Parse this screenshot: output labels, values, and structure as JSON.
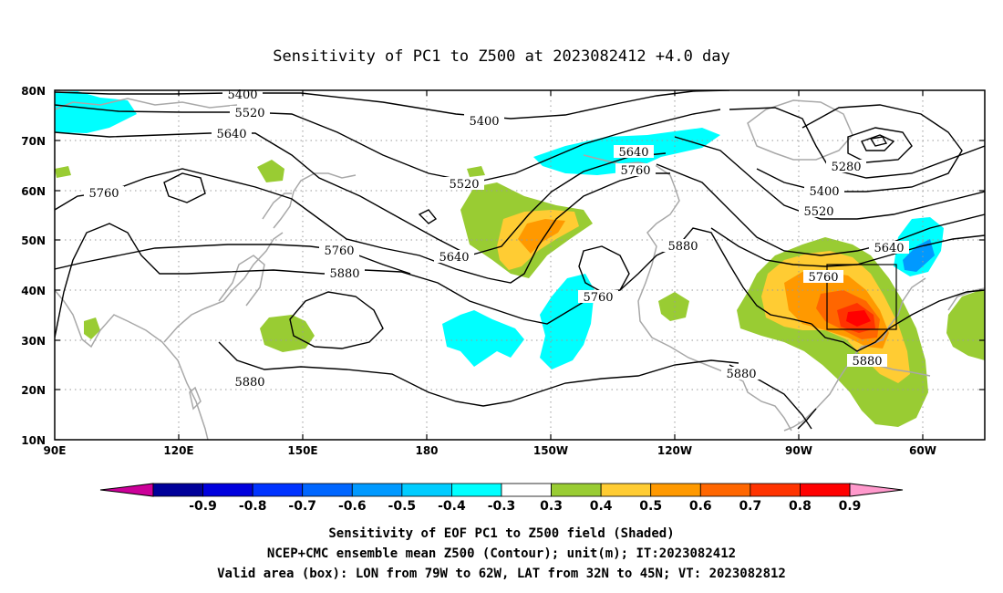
{
  "title": "Sensitivity of PC1 to Z500 at 2023082412 +4.0 day",
  "map": {
    "lon_range": [
      90,
      315
    ],
    "lat_range": [
      10,
      80
    ],
    "grid": "dotted",
    "lat_ticks": [
      "80N",
      "70N",
      "60N",
      "50N",
      "40N",
      "30N",
      "20N",
      "10N"
    ],
    "lon_ticks": [
      "90E",
      "120E",
      "150E",
      "180",
      "150W",
      "120W",
      "90W",
      "60W"
    ],
    "contour_labels": [
      "5400",
      "5520",
      "5640",
      "5760",
      "5880",
      "5400",
      "5640",
      "5760",
      "5520",
      "5640",
      "5760",
      "5880",
      "5760",
      "5880",
      "5880",
      "5280",
      "5400",
      "5520",
      "5640",
      "5760",
      "5880"
    ],
    "valid_box": {
      "lon_west": -79,
      "lon_east": -62,
      "lat_south": 32,
      "lat_north": 45
    },
    "colors": {
      "contour": "#000000",
      "coastline": "#a8a8a8",
      "pos_0_3": "#99cc33",
      "pos_0_4": "#ffcc33",
      "pos_0_5": "#ff9900",
      "pos_0_6": "#ff6600",
      "pos_0_7": "#ff3300",
      "pos_0_8": "#ff0000",
      "neg_0_3": "#00ffff"
    }
  },
  "colorbar": {
    "ticks": [
      "-0.9",
      "-0.8",
      "-0.7",
      "-0.6",
      "-0.5",
      "-0.4",
      "-0.3",
      "0.3",
      "0.4",
      "0.5",
      "0.6",
      "0.7",
      "0.8",
      "0.9"
    ],
    "colors": [
      "#cc0099",
      "#000099",
      "#0000dd",
      "#0033ff",
      "#0066ff",
      "#0099ff",
      "#00ccff",
      "#00ffff",
      "#ffffff",
      "#99cc33",
      "#ffcc33",
      "#ff9900",
      "#ff6600",
      "#ff3300",
      "#ff0000",
      "#ff99cc"
    ]
  },
  "footer": {
    "line1": "Sensitivity of EOF PC1 to Z500 field (Shaded)",
    "line2": "NCEP+CMC ensemble mean Z500 (Contour); unit(m); IT:2023082412",
    "line3": "Valid area (box): LON from 79W to 62W, LAT from 32N to 45N; VT: 2023082812"
  }
}
